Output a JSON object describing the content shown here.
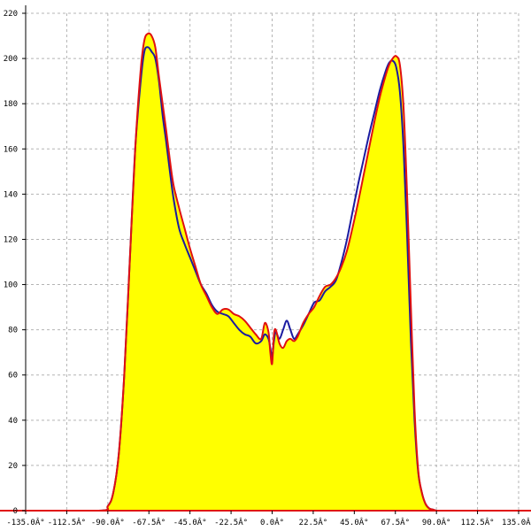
{
  "chart_data": {
    "type": "area",
    "title": "",
    "xlabel": "",
    "ylabel": "",
    "xlim": [
      -135,
      135
    ],
    "ylim": [
      0,
      220
    ],
    "x_ticks": [
      {
        "value": -135,
        "label": "-135.0Â°"
      },
      {
        "value": -112.5,
        "label": "-112.5Â°"
      },
      {
        "value": -90,
        "label": "-90.0Â°"
      },
      {
        "value": -67.5,
        "label": "-67.5Â°"
      },
      {
        "value": -45,
        "label": "-45.0Â°"
      },
      {
        "value": -22.5,
        "label": "-22.5Â°"
      },
      {
        "value": 0,
        "label": "0.0Â°"
      },
      {
        "value": 22.5,
        "label": "22.5Â°"
      },
      {
        "value": 45,
        "label": "45.0Â°"
      },
      {
        "value": 67.5,
        "label": "67.5Â°"
      },
      {
        "value": 90,
        "label": "90.0Â°"
      },
      {
        "value": 112.5,
        "label": "112.5Â°"
      },
      {
        "value": 135,
        "label": "135.0Â°"
      }
    ],
    "y_ticks": [
      {
        "value": 0,
        "label": "0"
      },
      {
        "value": 20,
        "label": "20"
      },
      {
        "value": 40,
        "label": "40"
      },
      {
        "value": 60,
        "label": "60"
      },
      {
        "value": 80,
        "label": "80"
      },
      {
        "value": 100,
        "label": "100"
      },
      {
        "value": 120,
        "label": "120"
      },
      {
        "value": 140,
        "label": "140"
      },
      {
        "value": 160,
        "label": "160"
      },
      {
        "value": 180,
        "label": "180"
      },
      {
        "value": 200,
        "label": "200"
      },
      {
        "value": 220,
        "label": "220"
      }
    ],
    "grid": true,
    "fill_color": "#ffff00",
    "series": [
      {
        "color": "#1a1aa0",
        "x": [
          -140,
          -95,
          -90,
          -87,
          -84,
          -81,
          -78,
          -75,
          -72,
          -70,
          -68,
          -66,
          -64,
          -62,
          -60,
          -58,
          -56,
          -54,
          -51,
          -48,
          -45,
          -42,
          -39,
          -36,
          -33,
          -30,
          -27,
          -24,
          -21,
          -18,
          -15,
          -12,
          -9,
          -6,
          -4,
          -2,
          -1,
          0,
          1,
          2,
          4,
          6,
          8,
          10,
          12,
          14,
          17,
          20,
          23,
          26,
          29,
          32,
          35,
          38,
          41,
          44,
          47,
          50,
          53,
          56,
          59,
          62,
          64,
          66,
          68,
          70,
          72,
          74,
          76,
          78,
          80,
          82,
          84,
          86,
          88,
          90,
          93,
          96,
          140
        ],
        "y": [
          0,
          0,
          2,
          8,
          25,
          60,
          110,
          160,
          190,
          203,
          205,
          203,
          200,
          190,
          175,
          163,
          150,
          138,
          125,
          118,
          112,
          106,
          100,
          96,
          91,
          88,
          87,
          86,
          83,
          80,
          78,
          77,
          74,
          75,
          78,
          76,
          72,
          68,
          75,
          79,
          76,
          80,
          84,
          80,
          76,
          78,
          82,
          87,
          92,
          93,
          97,
          99,
          102,
          110,
          120,
          132,
          144,
          155,
          166,
          176,
          186,
          194,
          198,
          199,
          196,
          185,
          160,
          120,
          75,
          40,
          17,
          8,
          3,
          1,
          0.5,
          0,
          0,
          0,
          0
        ]
      },
      {
        "color": "#e01010",
        "x": [
          -140,
          -95,
          -90,
          -87,
          -84,
          -81,
          -78,
          -75,
          -72,
          -70,
          -68,
          -66,
          -64,
          -62,
          -60,
          -58,
          -56,
          -54,
          -51,
          -48,
          -45,
          -42,
          -39,
          -36,
          -33,
          -30,
          -27,
          -24,
          -21,
          -18,
          -15,
          -12,
          -9,
          -6,
          -4,
          -2,
          -1,
          0,
          1,
          2,
          4,
          6,
          8,
          10,
          12,
          14,
          17,
          20,
          23,
          26,
          29,
          32,
          35,
          38,
          41,
          44,
          47,
          50,
          53,
          56,
          59,
          62,
          64,
          66,
          68,
          70,
          72,
          74,
          76,
          78,
          80,
          82,
          84,
          86,
          88,
          90,
          93,
          96,
          140
        ],
        "y": [
          0,
          0,
          2,
          8,
          25,
          60,
          110,
          160,
          195,
          208,
          211,
          210,
          205,
          192,
          180,
          168,
          155,
          144,
          134,
          125,
          116,
          108,
          100,
          95,
          90,
          87,
          89,
          89,
          87,
          86,
          84,
          81,
          78,
          76,
          83,
          79,
          70,
          65,
          78,
          80,
          74,
          72,
          75,
          76,
          75,
          77,
          83,
          87,
          90,
          95,
          99,
          100,
          103,
          108,
          115,
          125,
          136,
          148,
          160,
          172,
          183,
          192,
          197,
          200,
          201,
          197,
          178,
          138,
          90,
          45,
          18,
          8,
          3,
          1,
          0.5,
          0,
          0,
          0,
          0
        ]
      }
    ]
  }
}
